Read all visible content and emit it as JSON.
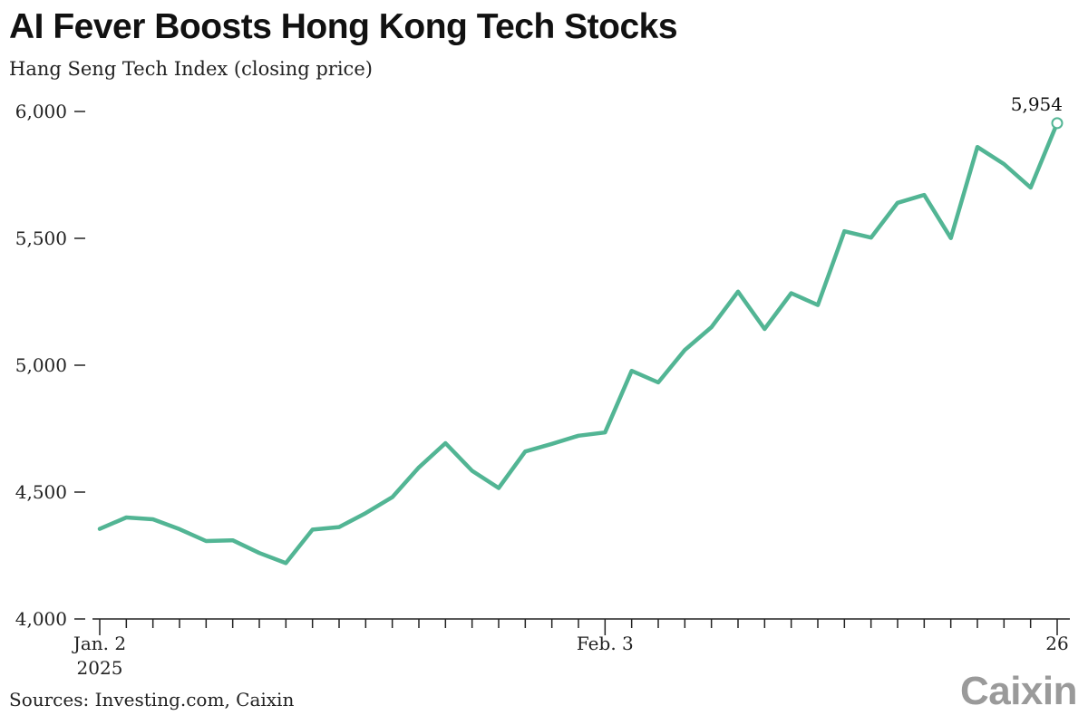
{
  "title": "AI Fever Boosts Hong Kong Tech Stocks",
  "subtitle": "Hang Seng Tech Index (closing price)",
  "source": "Sources: Investing.com, Caixin",
  "brand": "Caixin",
  "colors": {
    "line": "#52b594",
    "axis": "#222222",
    "text": "#222222"
  },
  "chart_data": {
    "type": "line",
    "title": "AI Fever Boosts Hong Kong Tech Stocks",
    "subtitle": "Hang Seng Tech Index (closing price)",
    "xlabel": "",
    "ylabel": "",
    "ylim": [
      4000,
      6000
    ],
    "yticks": [
      4000,
      4500,
      5000,
      5500,
      6000
    ],
    "ytick_labels": [
      "4,000",
      "4,500",
      "5,000",
      "5,500",
      "6,000"
    ],
    "xtick_labels": [
      {
        "index": 0,
        "line1": "Jan. 2",
        "line2": "2025"
      },
      {
        "index": 19,
        "line1": "Feb. 3",
        "line2": ""
      },
      {
        "index": 36,
        "line1": "26",
        "line2": ""
      }
    ],
    "num_points": 37,
    "end_label": "5,954",
    "grid": false,
    "series": [
      {
        "values": [
          4355,
          4400,
          4393,
          4354,
          4307,
          4310,
          4260,
          4220,
          4352,
          4362,
          4417,
          4480,
          4597,
          4693,
          4584,
          4516,
          4660,
          4690,
          4722,
          4735,
          4978,
          4932,
          5060,
          5150,
          5290,
          5143,
          5284,
          5237,
          5528,
          5503,
          5640,
          5671,
          5501,
          5860,
          5793,
          5700,
          5954
        ]
      }
    ]
  }
}
